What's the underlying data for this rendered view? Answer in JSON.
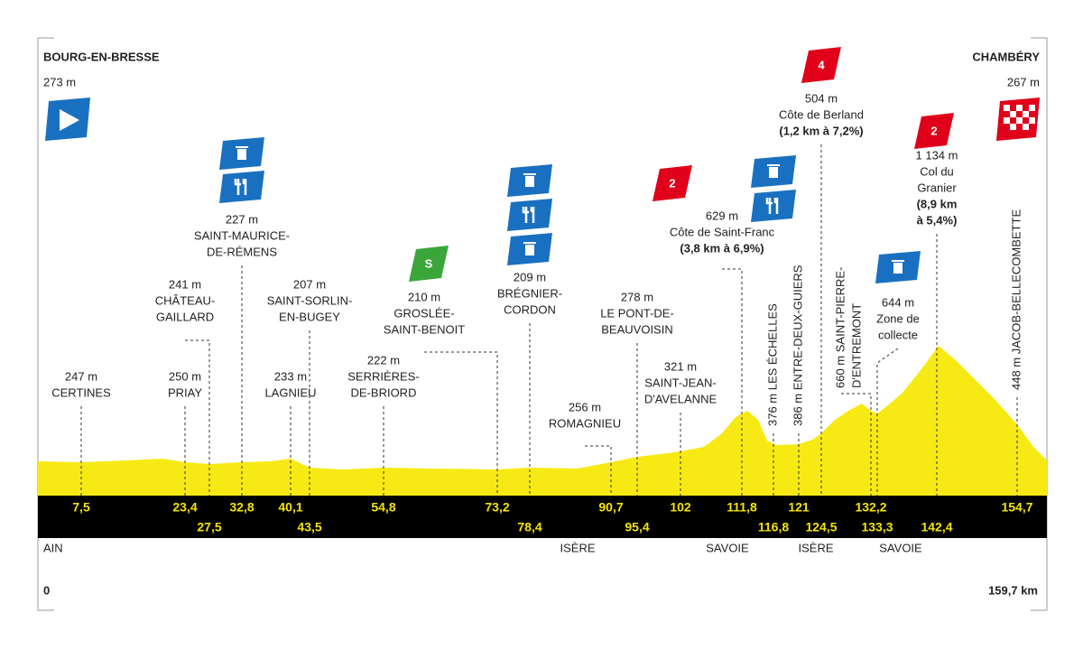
{
  "start": {
    "name": "BOURG-EN-BRESSE",
    "elevation": "273 m"
  },
  "finish": {
    "name": "CHAMBÉRY",
    "elevation": "267 m"
  },
  "distance": {
    "start": "0",
    "end": "159,7 km"
  },
  "waypoints": [
    {
      "km": "7,5",
      "label": [
        "247 m",
        "CERTINES"
      ]
    },
    {
      "km": "23,4",
      "label": [
        "250 m",
        "PRIAY"
      ]
    },
    {
      "km": "27,5",
      "label": [
        "241 m",
        "CHÂTEAU-",
        "GAILLARD"
      ]
    },
    {
      "km": "32,8",
      "label": [
        "227 m",
        "SAINT-MAURICE-",
        "DE-RÉMENS"
      ]
    },
    {
      "km": "40,1",
      "label": [
        "233 m",
        "LAGNIEU"
      ]
    },
    {
      "km": "43,5",
      "label": [
        "207 m",
        "SAINT-SORLIN-",
        "EN-BUGEY"
      ]
    },
    {
      "km": "54,8",
      "label": [
        "222 m",
        "SERRIÈRES-",
        "DE-BRIORD"
      ]
    },
    {
      "km": "73,2",
      "label": [
        "210 m",
        "GROSLÉE-",
        "SAINT-BENOIT"
      ],
      "badge": "S"
    },
    {
      "km": "78,4",
      "label": [
        "209 m",
        "BRÉGNIER-",
        "CORDON"
      ]
    },
    {
      "km": "90,7",
      "label": [
        "256 m",
        "ROMAGNIEU"
      ]
    },
    {
      "km": "95,4",
      "label": [
        "278 m",
        "LE PONT-DE-",
        "BEAUVOISIN"
      ]
    },
    {
      "km": "102",
      "label": [
        "321 m",
        "SAINT-JEAN-",
        "D'AVELANNE"
      ]
    },
    {
      "km": "111,8",
      "label": [
        "629 m",
        "Côte de Saint-Franc"
      ],
      "detail": [
        "(3,8 km à 6,9%)"
      ],
      "badge": "2"
    },
    {
      "km": "116,8",
      "label": [
        "376 m LES ÉCHELLES"
      ]
    },
    {
      "km": "121",
      "label": [
        "386 m ENTRE-DEUX-GUIERS"
      ]
    },
    {
      "km": "124,5",
      "label": [
        "504 m",
        "Côte de Berland"
      ],
      "detail": [
        "(1,2 km à 7,2%)"
      ],
      "badge": "4"
    },
    {
      "km": "132,2",
      "label": [
        "660 m SAINT-PIERRE-",
        "D'ENTREMONT"
      ]
    },
    {
      "km": "133,3",
      "label": [
        "644 m",
        "Zone de",
        "collecte"
      ]
    },
    {
      "km": "142,4",
      "label": [
        "1 134 m",
        "Col du",
        "Granier"
      ],
      "detail": [
        "(8,9 km",
        "à 5,4%)"
      ],
      "badge": "2"
    },
    {
      "km": "154,7",
      "label": [
        "448 m JACOB-BELLECOMBETTE"
      ]
    }
  ],
  "regions": [
    "AIN",
    "ISÈRE",
    "SAVOIE",
    "ISÈRE",
    "SAVOIE"
  ]
}
